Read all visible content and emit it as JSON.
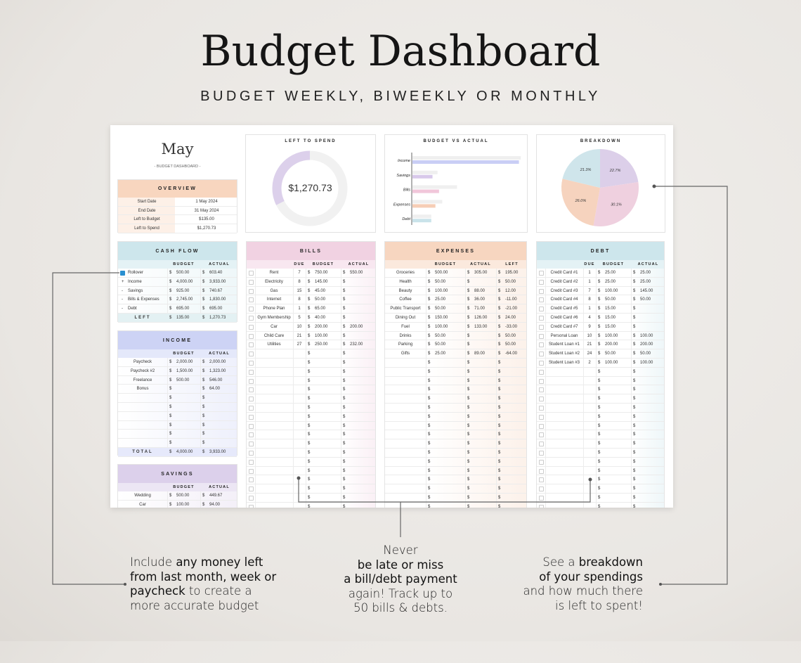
{
  "header": {
    "title": "Budget Dashboard",
    "subtitle": "BUDGET WEEKLY, BIWEEKLY OR MONTHLY"
  },
  "currency": "$",
  "sheet": {
    "month": "May",
    "month_subtitle": "- BUDGET DASHBOARD -",
    "overview": {
      "title": "OVERVIEW",
      "rows": [
        [
          "Start Date",
          "1 May 2024"
        ],
        [
          "End Date",
          "31 May 2024"
        ],
        [
          "Left to Budget",
          "$135.00"
        ],
        [
          "Left to Spend",
          "$1,270.73"
        ]
      ]
    },
    "left_to_spend": {
      "title": "LEFT TO SPEND",
      "amount": "$1,270.73",
      "spent_fraction": 0.323,
      "color": "#dcd0eb",
      "track": "#f1f1f1"
    },
    "cash_flow": {
      "title": "CASH FLOW",
      "columns": [
        "BUDGET",
        "ACTUAL"
      ],
      "rows": [
        {
          "sign": "",
          "label": "Rollover",
          "checked": true,
          "budget": "500.00",
          "actual": "603.40"
        },
        {
          "sign": "+",
          "label": "Income",
          "budget": "4,000.00",
          "actual": "3,933.00"
        },
        {
          "sign": "-",
          "label": "Savings",
          "budget": "925.00",
          "actual": "740.67"
        },
        {
          "sign": "-",
          "label": "Bills & Expenses",
          "budget": "2,745.00",
          "actual": "1,830.00"
        },
        {
          "sign": "-",
          "label": "Debt",
          "budget": "695.00",
          "actual": "695.00"
        }
      ],
      "total": {
        "label": "LEFT",
        "budget": "135.00",
        "actual": "1,270.73"
      }
    },
    "income": {
      "title": "INCOME",
      "columns": [
        "BUDGET",
        "ACTUAL"
      ],
      "rows": [
        [
          "Paycheck",
          "2,000.00",
          "2,000.00"
        ],
        [
          "Paycheck #2",
          "1,500.00",
          "1,323.00"
        ],
        [
          "Freelance",
          "500.00",
          "546.00"
        ],
        [
          "Bonus",
          "",
          "64.00"
        ],
        [
          "",
          "",
          ""
        ],
        [
          "",
          "",
          ""
        ],
        [
          "",
          "",
          ""
        ],
        [
          "",
          "",
          ""
        ],
        [
          "",
          "",
          ""
        ],
        [
          "",
          "",
          ""
        ]
      ],
      "total": {
        "label": "TOTAL",
        "budget": "4,000.00",
        "actual": "3,933.00"
      }
    },
    "savings": {
      "title": "SAVINGS",
      "columns": [
        "BUDGET",
        "ACTUAL"
      ],
      "rows": [
        [
          "Wedding",
          "500.00",
          "449.67"
        ],
        [
          "Car",
          "100.00",
          "94.00"
        ]
      ]
    },
    "bills": {
      "title": "BILLS",
      "columns": [
        "DUE",
        "BUDGET",
        "ACTUAL"
      ],
      "rows": [
        [
          "Rent",
          "7",
          "750.00",
          "550.00"
        ],
        [
          "Electricity",
          "8",
          "145.00",
          ""
        ],
        [
          "Gas",
          "15",
          "45.00",
          ""
        ],
        [
          "Internet",
          "8",
          "50.00",
          ""
        ],
        [
          "Phone Plan",
          "1",
          "65.00",
          ""
        ],
        [
          "Gym Membership",
          "5",
          "40.00",
          ""
        ],
        [
          "Car",
          "10",
          "200.00",
          "200.00"
        ],
        [
          "Child Care",
          "21",
          "100.00",
          ""
        ],
        [
          "Utilities",
          "27",
          "250.00",
          "232.00"
        ]
      ]
    },
    "expenses": {
      "title": "EXPENSES",
      "columns": [
        "BUDGET",
        "ACTUAL",
        "LEFT"
      ],
      "rows": [
        [
          "Groceries",
          "500.00",
          "305.00",
          "195.00"
        ],
        [
          "Health",
          "50.00",
          "",
          "50.00"
        ],
        [
          "Beauty",
          "100.00",
          "88.00",
          "12.00"
        ],
        [
          "Coffee",
          "25.00",
          "36.00",
          "-11.00"
        ],
        [
          "Public Transport",
          "50.00",
          "71.00",
          "-21.00"
        ],
        [
          "Dining Out",
          "150.00",
          "126.00",
          "24.00"
        ],
        [
          "Fuel",
          "100.00",
          "133.00",
          "-33.00"
        ],
        [
          "Drinks",
          "50.00",
          "",
          "50.00"
        ],
        [
          "Parking",
          "50.00",
          "",
          "50.00"
        ],
        [
          "Gifts",
          "25.00",
          "89.00",
          "-64.00"
        ]
      ]
    },
    "debt": {
      "title": "DEBT",
      "columns": [
        "DUE",
        "BUDGET",
        "ACTUAL"
      ],
      "rows": [
        [
          "Credit Card #1",
          "1",
          "25.00",
          "25.00"
        ],
        [
          "Credit Card #2",
          "1",
          "25.00",
          "25.00"
        ],
        [
          "Credit Card #3",
          "7",
          "100.00",
          "145.00"
        ],
        [
          "Credit Card #4",
          "8",
          "50.00",
          "50.00"
        ],
        [
          "Credit Card #5",
          "1",
          "15.00",
          ""
        ],
        [
          "Credit Card #6",
          "4",
          "15.00",
          ""
        ],
        [
          "Credit Card #7",
          "9",
          "15.00",
          ""
        ],
        [
          "Personal Loan",
          "10",
          "100.00",
          "100.00"
        ],
        [
          "Student Loan #1",
          "21",
          "200.00",
          "200.00"
        ],
        [
          "Student Loan #2",
          "24",
          "50.00",
          "50.00"
        ],
        [
          "Student Loan #3",
          "2",
          "100.00",
          "100.00"
        ]
      ]
    },
    "colors": {
      "overview": "#f8d6bf",
      "cash_flow": "#cde6ec",
      "income": "#cdd3f5",
      "savings": "#dcd0eb",
      "bills": "#f1d2e2",
      "expenses": "#f7d6c0",
      "debt": "#cde6ec"
    }
  },
  "chart_data": [
    {
      "type": "bar",
      "title": "BUDGET VS ACTUAL",
      "orientation": "horizontal",
      "categories": [
        "Income",
        "Savings",
        "Bills",
        "Expenses",
        "Debt"
      ],
      "series": [
        {
          "name": "Budget",
          "values": [
            4000,
            925,
            1645,
            1100,
            695
          ],
          "color": "#efefef"
        },
        {
          "name": "Actual",
          "values": [
            3933,
            740.67,
            982,
            848,
            695
          ],
          "colors": [
            "#c9cef5",
            "#d8c9ea",
            "#f1c6da",
            "#f6cdb5",
            "#c9e3ea"
          ]
        }
      ],
      "xlim": [
        0,
        4100
      ],
      "grid": false,
      "legend": "none"
    },
    {
      "type": "pie",
      "title": "BREAKDOWN",
      "labels": [
        "22.7%",
        "30.1%",
        "26.0%",
        "21.3%"
      ],
      "values": [
        22.7,
        30.1,
        26.0,
        21.3
      ],
      "colors": [
        "#dccfe9",
        "#efd0df",
        "#f6d3be",
        "#cfe5eb"
      ]
    }
  ],
  "annotations": {
    "left": {
      "parts": [
        [
          "Include ",
          0
        ],
        [
          "any money left",
          1
        ],
        [
          "from last month, week or",
          1
        ],
        [
          "paycheck",
          1
        ],
        [
          " to create a",
          0
        ],
        [
          "more accurate budget",
          0
        ]
      ]
    },
    "middle": {
      "parts": [
        [
          "Never ",
          0
        ],
        [
          "be late or miss",
          1
        ],
        [
          "a bill/debt payment",
          1
        ],
        [
          "again! Track up to",
          0
        ],
        [
          "50 bills & debts.",
          0
        ]
      ]
    },
    "right": {
      "parts": [
        [
          "See a ",
          0
        ],
        [
          "breakdown",
          1
        ],
        [
          "of your spendings",
          1
        ],
        [
          "and how much there",
          0
        ],
        [
          "is left to spent!",
          0
        ]
      ]
    }
  }
}
